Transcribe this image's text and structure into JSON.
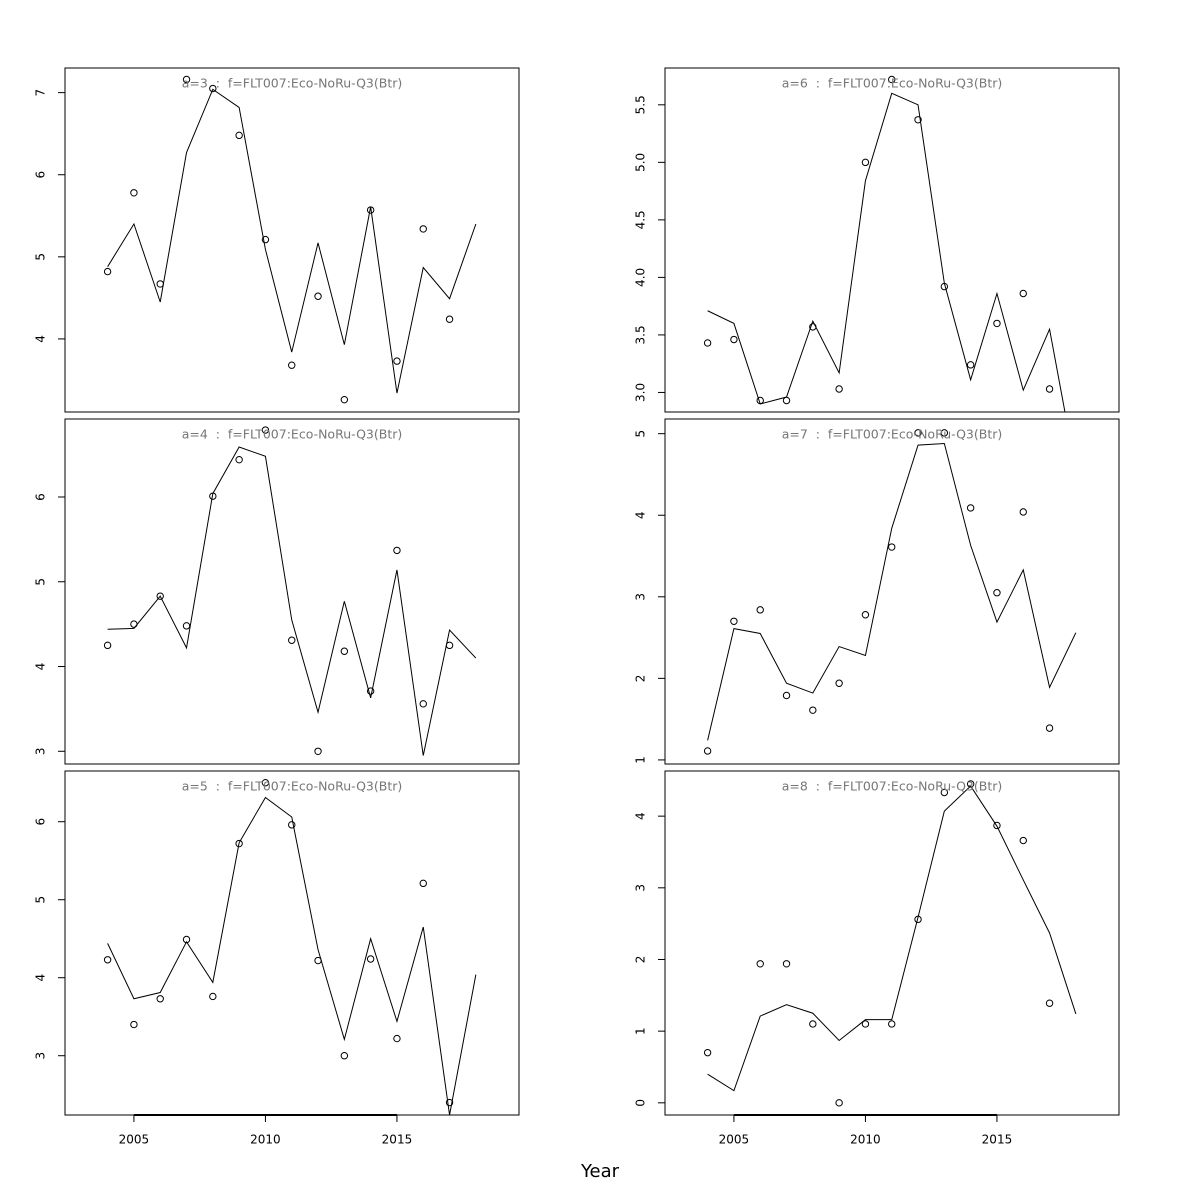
{
  "xlabel": "Year",
  "chart_data": [
    {
      "type": "line",
      "title": "a=3  :  f=FLT007:Eco-NoRu-Q3(Btr)",
      "x": [
        2004,
        2005,
        2006,
        2007,
        2008,
        2009,
        2010,
        2011,
        2012,
        2013,
        2014,
        2015,
        2016,
        2017,
        2018
      ],
      "series": [
        {
          "type": "scatter",
          "color": "#000000",
          "values": [
            4.82,
            5.78,
            4.67,
            7.16,
            7.05,
            6.48,
            5.21,
            3.68,
            4.52,
            3.26,
            5.57,
            3.73,
            5.34,
            4.24,
            null
          ]
        },
        {
          "type": "line",
          "color": "#000000",
          "values": [
            4.88,
            5.4,
            4.45,
            6.27,
            7.04,
            6.82,
            5.09,
            3.84,
            5.17,
            3.93,
            5.61,
            3.34,
            4.87,
            4.49,
            5.4
          ]
        }
      ],
      "xlim": [
        2002.38,
        2019.64
      ],
      "ylim": [
        3.11,
        7.3
      ],
      "yticks": [
        4,
        5,
        6,
        7
      ]
    },
    {
      "type": "line",
      "title": "a=4  :  f=FLT007:Eco-NoRu-Q3(Btr)",
      "x": [
        2004,
        2005,
        2006,
        2007,
        2008,
        2009,
        2010,
        2011,
        2012,
        2013,
        2014,
        2015,
        2016,
        2017,
        2018
      ],
      "series": [
        {
          "type": "scatter",
          "color": "#000000",
          "values": [
            4.25,
            4.5,
            4.83,
            4.48,
            6.01,
            6.44,
            6.79,
            4.31,
            3.0,
            4.18,
            3.71,
            5.37,
            3.56,
            4.25,
            null
          ]
        },
        {
          "type": "line",
          "color": "#000000",
          "values": [
            4.44,
            4.45,
            4.83,
            4.22,
            6.04,
            6.59,
            6.48,
            4.55,
            3.46,
            4.77,
            3.63,
            5.14,
            2.95,
            4.43,
            4.1
          ]
        }
      ],
      "xlim": [
        2002.38,
        2019.64
      ],
      "ylim": [
        2.85,
        6.92
      ],
      "yticks": [
        3,
        4,
        5,
        6
      ]
    },
    {
      "type": "line",
      "title": "a=5  :  f=FLT007:Eco-NoRu-Q3(Btr)",
      "x": [
        2004,
        2005,
        2006,
        2007,
        2008,
        2009,
        2010,
        2011,
        2012,
        2013,
        2014,
        2015,
        2016,
        2017,
        2018
      ],
      "series": [
        {
          "type": "scatter",
          "color": "#000000",
          "values": [
            4.23,
            3.4,
            3.73,
            4.49,
            3.76,
            5.72,
            6.5,
            5.96,
            4.22,
            3.0,
            4.24,
            3.22,
            5.21,
            2.4,
            null
          ]
        },
        {
          "type": "line",
          "color": "#000000",
          "values": [
            4.44,
            3.73,
            3.81,
            4.46,
            3.94,
            5.73,
            6.31,
            6.06,
            4.36,
            3.21,
            4.5,
            3.44,
            4.65,
            2.24,
            4.04
          ]
        }
      ],
      "xlim": [
        2002.38,
        2019.64
      ],
      "ylim": [
        2.24,
        6.65
      ],
      "yticks": [
        3,
        4,
        5,
        6
      ],
      "xticks": [
        2005,
        2010,
        2015
      ]
    },
    {
      "type": "line",
      "title": "a=6  :  f=FLT007:Eco-NoRu-Q3(Btr)",
      "x": [
        2004,
        2005,
        2006,
        2007,
        2008,
        2009,
        2010,
        2011,
        2012,
        2013,
        2014,
        2015,
        2016,
        2017,
        2018
      ],
      "series": [
        {
          "type": "scatter",
          "color": "#000000",
          "values": [
            3.43,
            3.46,
            2.93,
            2.93,
            3.57,
            3.03,
            5.0,
            5.72,
            5.37,
            3.92,
            3.24,
            3.6,
            3.86,
            3.03,
            null
          ]
        },
        {
          "type": "line",
          "color": "#000000",
          "values": [
            3.71,
            3.6,
            2.9,
            2.96,
            3.62,
            3.17,
            4.84,
            5.6,
            5.5,
            3.95,
            3.11,
            3.86,
            3.02,
            3.55,
            2.32
          ]
        }
      ],
      "xlim": [
        2002.38,
        2019.64
      ],
      "ylim": [
        2.83,
        5.82
      ],
      "yticks": [
        {
          "value": 3,
          "label": "3.0"
        },
        3.5,
        {
          "value": 4,
          "label": "4.0"
        },
        4.5,
        {
          "value": 5,
          "label": "5.0"
        },
        5.5
      ]
    },
    {
      "type": "line",
      "title": "a=7  :  f=FLT007:Eco-NoRu-Q3(Btr)",
      "x": [
        2004,
        2005,
        2006,
        2007,
        2008,
        2009,
        2010,
        2011,
        2012,
        2013,
        2014,
        2015,
        2016,
        2017,
        2018
      ],
      "series": [
        {
          "type": "scatter",
          "color": "#000000",
          "values": [
            1.11,
            2.7,
            2.84,
            1.79,
            1.61,
            1.94,
            2.78,
            3.61,
            5.01,
            5.01,
            4.09,
            3.05,
            4.04,
            1.39,
            null
          ]
        },
        {
          "type": "line",
          "color": "#000000",
          "values": [
            1.24,
            2.61,
            2.55,
            1.94,
            1.82,
            2.39,
            2.28,
            3.84,
            4.86,
            4.88,
            3.63,
            2.69,
            3.33,
            1.89,
            2.56
          ]
        }
      ],
      "xlim": [
        2002.38,
        2019.64
      ],
      "ylim": [
        0.95,
        5.18
      ],
      "yticks": [
        1,
        2,
        3,
        4,
        5
      ]
    },
    {
      "type": "line",
      "title": "a=8  :  f=FLT007:Eco-NoRu-Q3(Btr)",
      "x": [
        2004,
        2005,
        2006,
        2007,
        2008,
        2009,
        2010,
        2011,
        2012,
        2013,
        2014,
        2015,
        2016,
        2017,
        2018
      ],
      "series": [
        {
          "type": "scatter",
          "color": "#000000",
          "values": [
            0.7,
            null,
            1.94,
            1.94,
            1.1,
            0,
            1.1,
            1.1,
            2.56,
            4.33,
            4.45,
            3.87,
            3.66,
            1.39,
            null
          ]
        },
        {
          "type": "line",
          "color": "#000000",
          "values": [
            0.4,
            0.17,
            1.21,
            1.37,
            1.25,
            0.87,
            1.16,
            1.16,
            2.59,
            4.07,
            4.42,
            3.86,
            3.11,
            2.37,
            1.24
          ]
        }
      ],
      "xlim": [
        2002.38,
        2019.64
      ],
      "ylim": [
        -0.17,
        4.63
      ],
      "yticks": [
        0,
        1,
        2,
        3,
        4
      ],
      "xticks": [
        2005,
        2010,
        2015
      ]
    }
  ]
}
